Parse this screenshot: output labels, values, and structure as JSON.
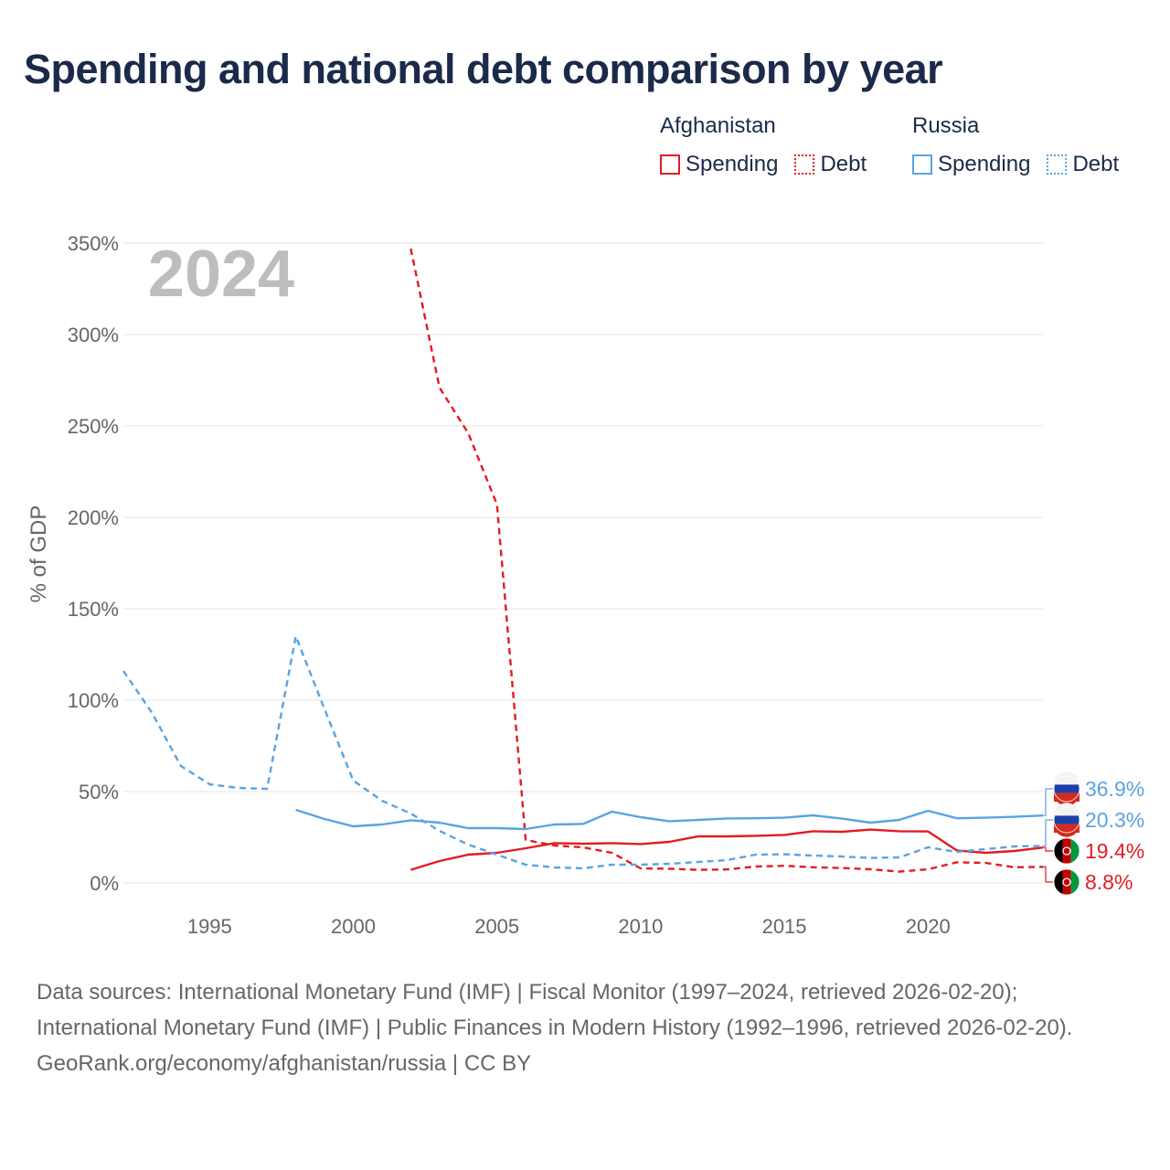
{
  "title": "Spending and national debt comparison by year",
  "legend": {
    "groups": [
      {
        "country": "Afghanistan",
        "color": "#e31b23",
        "items": [
          "Spending",
          "Debt"
        ]
      },
      {
        "country": "Russia",
        "color": "#5ba3e0",
        "items": [
          "Spending",
          "Debt"
        ]
      }
    ]
  },
  "chart_data": {
    "type": "line",
    "year_watermark": "2024",
    "ylabel": "% of GDP",
    "xlim": [
      1992,
      2024
    ],
    "ylim": [
      0,
      350
    ],
    "x_ticks": [
      1995,
      2000,
      2005,
      2010,
      2015,
      2020
    ],
    "y_ticks": [
      0,
      50,
      100,
      150,
      200,
      250,
      300,
      350
    ],
    "y_tick_labels": [
      "0%",
      "50%",
      "100%",
      "150%",
      "200%",
      "250%",
      "300%",
      "350%"
    ],
    "grid": true,
    "series": [
      {
        "name": "Afghanistan Spending",
        "country": "Afghanistan",
        "color": "#e31b23",
        "dash": false,
        "x": [
          2002,
          2003,
          2004,
          2005,
          2006,
          2007,
          2008,
          2009,
          2010,
          2011,
          2012,
          2013,
          2014,
          2015,
          2016,
          2017,
          2018,
          2019,
          2020,
          2021,
          2022,
          2023,
          2024
        ],
        "y": [
          7.2,
          12,
          15.5,
          16.5,
          19,
          21.8,
          21.5,
          21.8,
          21.3,
          22.5,
          25.5,
          25.5,
          25.8,
          26.3,
          28.3,
          28,
          29.2,
          28.3,
          28.2,
          17.8,
          16.5,
          17.5,
          19.4
        ]
      },
      {
        "name": "Afghanistan Debt",
        "country": "Afghanistan",
        "color": "#e31b23",
        "dash": true,
        "x": [
          2002,
          2003,
          2004,
          2005,
          2006,
          2007,
          2008,
          2009,
          2010,
          2011,
          2012,
          2013,
          2014,
          2015,
          2016,
          2017,
          2018,
          2019,
          2020,
          2021,
          2022,
          2023,
          2024
        ],
        "y": [
          347,
          271,
          246,
          207,
          23.5,
          20.5,
          19.5,
          16.5,
          8,
          7.8,
          7.2,
          7.4,
          9,
          9.4,
          8.6,
          8.2,
          7.5,
          6.2,
          7.5,
          11.3,
          11,
          8.6,
          8.8
        ]
      },
      {
        "name": "Russia Spending",
        "country": "Russia",
        "color": "#5ba3e0",
        "dash": false,
        "x": [
          1998,
          1999,
          2000,
          2001,
          2002,
          2003,
          2004,
          2005,
          2006,
          2007,
          2008,
          2009,
          2010,
          2011,
          2012,
          2013,
          2014,
          2015,
          2016,
          2017,
          2018,
          2019,
          2020,
          2021,
          2022,
          2023,
          2024
        ],
        "y": [
          40,
          35,
          31,
          32,
          34.3,
          33,
          30,
          30,
          29.5,
          32,
          32.3,
          39,
          36,
          33.8,
          34.5,
          35.3,
          35.4,
          35.7,
          37,
          35.2,
          33,
          34.5,
          39.5,
          35.4,
          35.7,
          36.2,
          36.9
        ]
      },
      {
        "name": "Russia Debt",
        "country": "Russia",
        "color": "#5ba3e0",
        "dash": true,
        "x": [
          1992,
          1993,
          1994,
          1995,
          1996,
          1997,
          1998,
          1999,
          2000,
          2001,
          2002,
          2003,
          2004,
          2005,
          2006,
          2007,
          2008,
          2009,
          2010,
          2011,
          2012,
          2013,
          2014,
          2015,
          2016,
          2017,
          2018,
          2019,
          2020,
          2021,
          2022,
          2023,
          2024
        ],
        "y": [
          116,
          93,
          64,
          54,
          52,
          51.5,
          135,
          95,
          56,
          45,
          38,
          28.5,
          21,
          15.5,
          10,
          8.5,
          8,
          10,
          10,
          10.5,
          11.5,
          12.5,
          15.5,
          15.7,
          15,
          14.5,
          13.7,
          14,
          19.5,
          17,
          18.5,
          20,
          20.3
        ]
      }
    ],
    "end_labels": [
      {
        "text": "36.9%",
        "country": "Russia",
        "color": "#5ba3e0",
        "value": 36.9
      },
      {
        "text": "20.3%",
        "country": "Russia",
        "color": "#5ba3e0",
        "value": 20.3
      },
      {
        "text": "19.4%",
        "country": "Afghanistan",
        "color": "#e31b23",
        "value": 19.4
      },
      {
        "text": "8.8%",
        "country": "Afghanistan",
        "color": "#e31b23",
        "value": 8.8
      }
    ]
  },
  "footer": {
    "sources": "Data sources: International Monetary Fund (IMF) | Fiscal Monitor (1997–2024, retrieved 2026-02-20); International Monetary Fund (IMF) | Public Finances in Modern History (1992–1996, retrieved 2026-02-20).",
    "credit": "GeoRank.org/economy/afghanistan/russia | CC BY"
  }
}
